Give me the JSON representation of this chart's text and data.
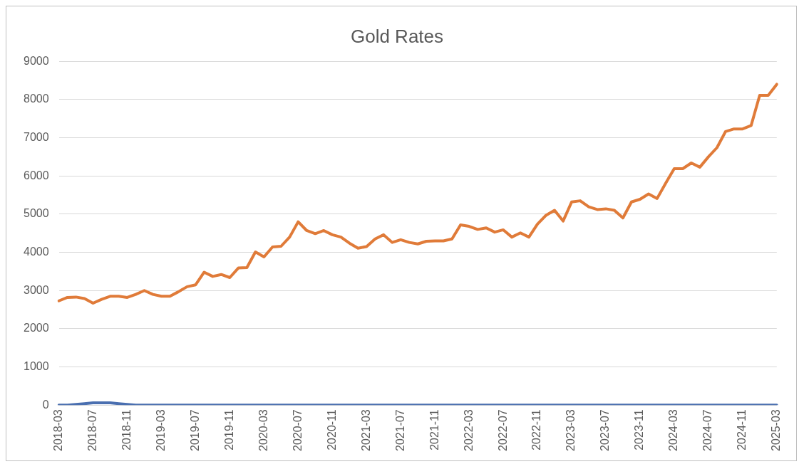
{
  "chart_data": {
    "type": "line",
    "title": "Gold Rates",
    "categories": [
      "2018-03",
      null,
      null,
      null,
      "2018-07",
      null,
      null,
      null,
      "2018-11",
      null,
      null,
      null,
      "2019-03",
      null,
      null,
      null,
      "2019-07",
      null,
      null,
      null,
      "2019-11",
      null,
      null,
      null,
      "2020-03",
      null,
      null,
      null,
      "2020-07",
      null,
      null,
      null,
      "2020-11",
      null,
      null,
      null,
      "2021-03",
      null,
      null,
      null,
      "2021-07",
      null,
      null,
      null,
      "2021-11",
      null,
      null,
      null,
      "2022-03",
      null,
      null,
      null,
      "2022-07",
      null,
      null,
      null,
      "2022-11",
      null,
      null,
      null,
      "2023-03",
      null,
      null,
      null,
      "2023-07",
      null,
      null,
      null,
      "2023-11",
      null,
      null,
      null,
      "2024-03",
      null,
      null,
      null,
      "2024-07",
      null,
      null,
      null,
      "2024-11",
      null,
      null,
      null,
      "2025-03"
    ],
    "series": [
      {
        "color": "#4a6fb0",
        "values": [
          0,
          0,
          20,
          40,
          60,
          60,
          60,
          40,
          20,
          0,
          0,
          0,
          0,
          0,
          0,
          0,
          0,
          0,
          0,
          0,
          0,
          0,
          0,
          0,
          0,
          0,
          0,
          0,
          0,
          0,
          0,
          0,
          0,
          0,
          0,
          0,
          0,
          0,
          0,
          0,
          0,
          0,
          0,
          0,
          0,
          0,
          0,
          0,
          0,
          0,
          0,
          0,
          0,
          0,
          0,
          0,
          0,
          0,
          0,
          0,
          0,
          0,
          0,
          0,
          0,
          0,
          0,
          0,
          0,
          0,
          0,
          0,
          0,
          0,
          0,
          0,
          0,
          0,
          0,
          0,
          0,
          0,
          0,
          0,
          0
        ]
      },
      {
        "color": "#e07b39",
        "values": [
          2730,
          2820,
          2830,
          2790,
          2670,
          2770,
          2850,
          2850,
          2820,
          2900,
          3000,
          2900,
          2850,
          2850,
          2970,
          3100,
          3150,
          3480,
          3370,
          3420,
          3340,
          3590,
          3600,
          4010,
          3880,
          4140,
          4160,
          4400,
          4800,
          4570,
          4490,
          4570,
          4460,
          4400,
          4240,
          4110,
          4150,
          4350,
          4460,
          4260,
          4330,
          4260,
          4220,
          4290,
          4300,
          4300,
          4350,
          4720,
          4680,
          4600,
          4640,
          4530,
          4590,
          4400,
          4510,
          4400,
          4740,
          4970,
          5100,
          4820,
          5320,
          5350,
          5190,
          5120,
          5140,
          5100,
          4900,
          5320,
          5390,
          5530,
          5410,
          5810,
          6190,
          6190,
          6340,
          6230,
          6500,
          6740,
          7160,
          7230,
          7230,
          7320,
          8110,
          8110,
          8400
        ]
      }
    ],
    "ylim": [
      0,
      9000
    ],
    "yticks": [
      0,
      1000,
      2000,
      3000,
      4000,
      5000,
      6000,
      7000,
      8000,
      9000
    ],
    "grid": "y",
    "legend": false,
    "marker": "none",
    "line_style": "solid"
  }
}
